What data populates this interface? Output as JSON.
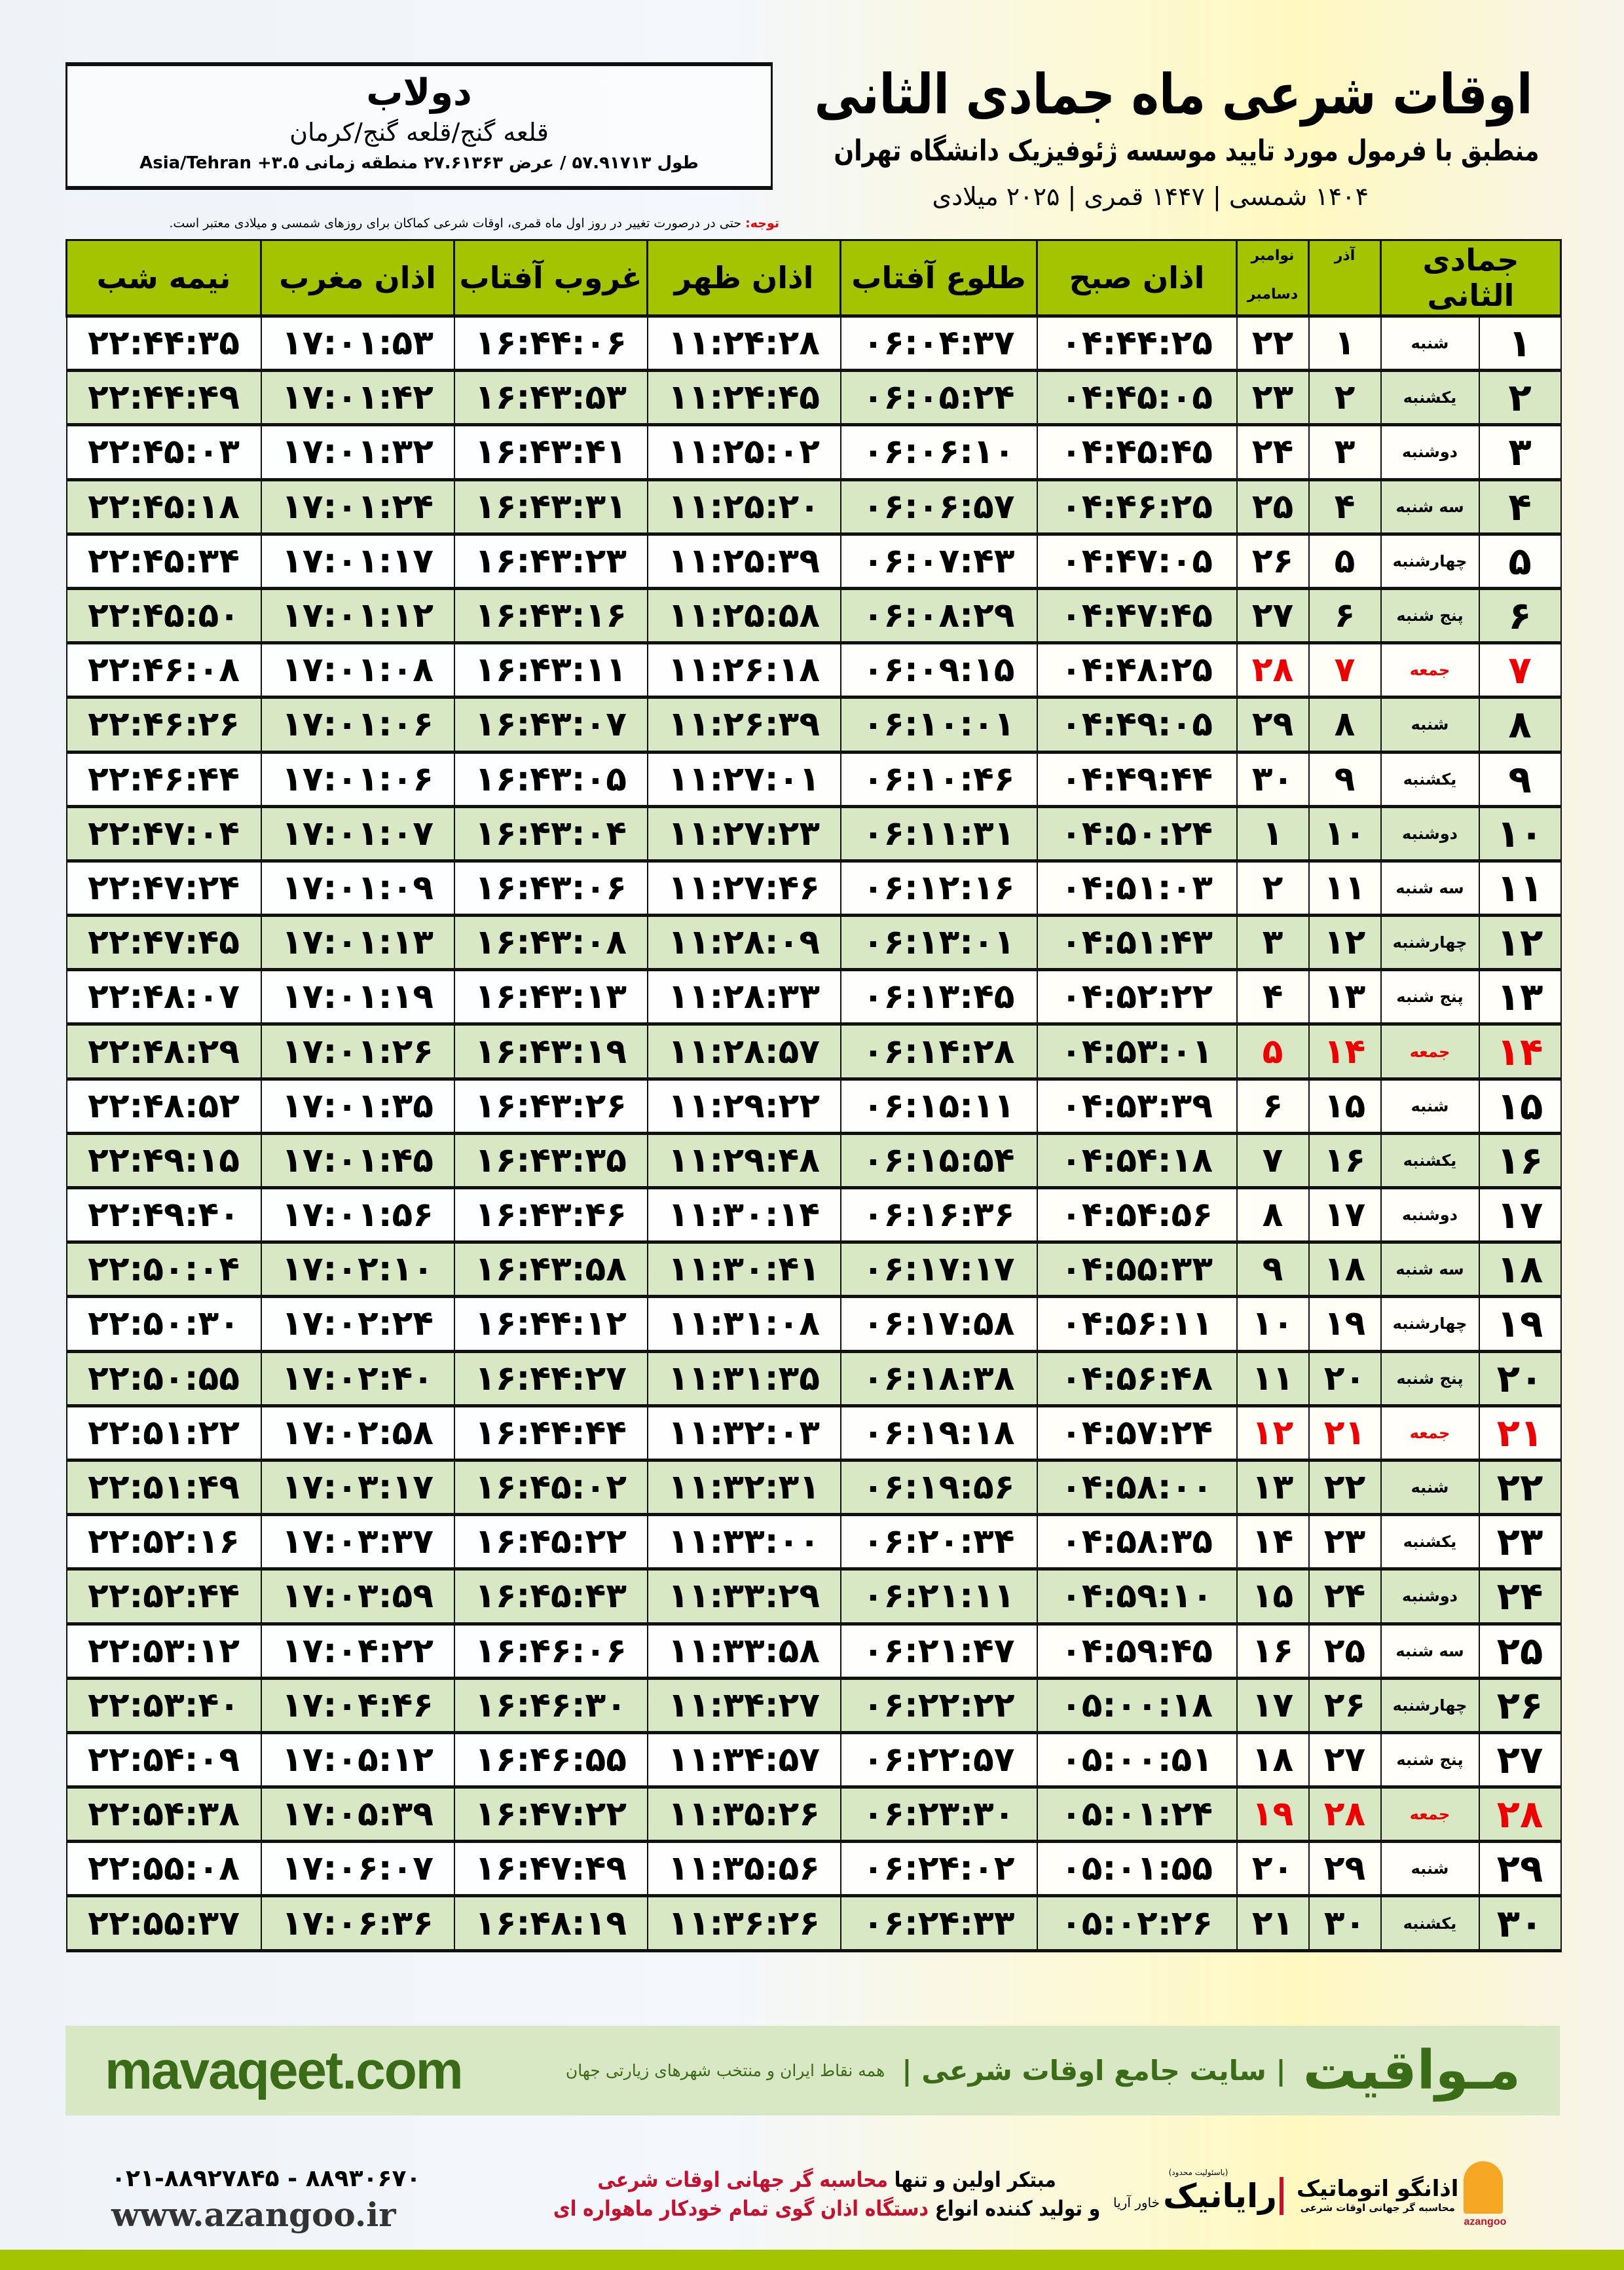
{
  "header": {
    "title": "اوقات شرعی ماه جمادی الثانی",
    "subtitle": "منطبق با فرمول مورد تایید موسسه ژئوفیزیک دانشگاه تهران",
    "dateline": "۱۴۰۴ شمسی | ۱۴۴۷ قمری | ۲۰۲۵ میلادی"
  },
  "location": {
    "city": "دولاب",
    "path": "قلعه گنج/قلعه گنج/کرمان",
    "coords": "طول ۵۷.۹۱۷۱۳ / عرض ۲۷.۶۱۳۶۳ منطقه زمانی ۳.۵+ Asia/Tehran"
  },
  "note": {
    "label": "توجه:",
    "text": " حتی در درصورت تغییر در روز اول ماه قمری، اوقات شرعی کماکان برای روزهای شمسی و میلادی معتبر است."
  },
  "colors": {
    "header_green": "#a4c400",
    "row_green": "#d9e8c4",
    "friday_red": "#e00000",
    "brand_green": "#3a6b17"
  },
  "table": {
    "columns": {
      "hijri": "جمادی الثانی",
      "azar": "آذر",
      "nov": "نوامبر",
      "dec": "دسامبر",
      "sobh": "اذان صبح",
      "tolou": "طلوع آفتاب",
      "zohr": "اذان ظهر",
      "ghoroob": "غروب آفتاب",
      "maghreb": "اذان مغرب",
      "nime": "نیمه شب"
    },
    "rows": [
      [
        "۱",
        "شنبه",
        "۱",
        "۲۲",
        "۰۴:۴۴:۲۵",
        "۰۶:۰۴:۳۷",
        "۱۱:۲۴:۲۸",
        "۱۶:۴۴:۰۶",
        "۱۷:۰۱:۵۳",
        "۲۲:۴۴:۳۵"
      ],
      [
        "۲",
        "یکشنبه",
        "۲",
        "۲۳",
        "۰۴:۴۵:۰۵",
        "۰۶:۰۵:۲۴",
        "۱۱:۲۴:۴۵",
        "۱۶:۴۳:۵۳",
        "۱۷:۰۱:۴۲",
        "۲۲:۴۴:۴۹"
      ],
      [
        "۳",
        "دوشنبه",
        "۳",
        "۲۴",
        "۰۴:۴۵:۴۵",
        "۰۶:۰۶:۱۰",
        "۱۱:۲۵:۰۲",
        "۱۶:۴۳:۴۱",
        "۱۷:۰۱:۳۲",
        "۲۲:۴۵:۰۳"
      ],
      [
        "۴",
        "سه شنبه",
        "۴",
        "۲۵",
        "۰۴:۴۶:۲۵",
        "۰۶:۰۶:۵۷",
        "۱۱:۲۵:۲۰",
        "۱۶:۴۳:۳۱",
        "۱۷:۰۱:۲۴",
        "۲۲:۴۵:۱۸"
      ],
      [
        "۵",
        "چهارشنبه",
        "۵",
        "۲۶",
        "۰۴:۴۷:۰۵",
        "۰۶:۰۷:۴۳",
        "۱۱:۲۵:۳۹",
        "۱۶:۴۳:۲۳",
        "۱۷:۰۱:۱۷",
        "۲۲:۴۵:۳۴"
      ],
      [
        "۶",
        "پنج شنبه",
        "۶",
        "۲۷",
        "۰۴:۴۷:۴۵",
        "۰۶:۰۸:۲۹",
        "۱۱:۲۵:۵۸",
        "۱۶:۴۳:۱۶",
        "۱۷:۰۱:۱۲",
        "۲۲:۴۵:۵۰"
      ],
      [
        "۷",
        "جمعه",
        "۷",
        "۲۸",
        "۰۴:۴۸:۲۵",
        "۰۶:۰۹:۱۵",
        "۱۱:۲۶:۱۸",
        "۱۶:۴۳:۱۱",
        "۱۷:۰۱:۰۸",
        "۲۲:۴۶:۰۸"
      ],
      [
        "۸",
        "شنبه",
        "۸",
        "۲۹",
        "۰۴:۴۹:۰۵",
        "۰۶:۱۰:۰۱",
        "۱۱:۲۶:۳۹",
        "۱۶:۴۳:۰۷",
        "۱۷:۰۱:۰۶",
        "۲۲:۴۶:۲۶"
      ],
      [
        "۹",
        "یکشنبه",
        "۹",
        "۳۰",
        "۰۴:۴۹:۴۴",
        "۰۶:۱۰:۴۶",
        "۱۱:۲۷:۰۱",
        "۱۶:۴۳:۰۵",
        "۱۷:۰۱:۰۶",
        "۲۲:۴۶:۴۴"
      ],
      [
        "۱۰",
        "دوشنبه",
        "۱۰",
        "۱",
        "۰۴:۵۰:۲۴",
        "۰۶:۱۱:۳۱",
        "۱۱:۲۷:۲۳",
        "۱۶:۴۳:۰۴",
        "۱۷:۰۱:۰۷",
        "۲۲:۴۷:۰۴"
      ],
      [
        "۱۱",
        "سه شنبه",
        "۱۱",
        "۲",
        "۰۴:۵۱:۰۳",
        "۰۶:۱۲:۱۶",
        "۱۱:۲۷:۴۶",
        "۱۶:۴۳:۰۶",
        "۱۷:۰۱:۰۹",
        "۲۲:۴۷:۲۴"
      ],
      [
        "۱۲",
        "چهارشنبه",
        "۱۲",
        "۳",
        "۰۴:۵۱:۴۳",
        "۰۶:۱۳:۰۱",
        "۱۱:۲۸:۰۹",
        "۱۶:۴۳:۰۸",
        "۱۷:۰۱:۱۳",
        "۲۲:۴۷:۴۵"
      ],
      [
        "۱۳",
        "پنج شنبه",
        "۱۳",
        "۴",
        "۰۴:۵۲:۲۲",
        "۰۶:۱۳:۴۵",
        "۱۱:۲۸:۳۳",
        "۱۶:۴۳:۱۳",
        "۱۷:۰۱:۱۹",
        "۲۲:۴۸:۰۷"
      ],
      [
        "۱۴",
        "جمعه",
        "۱۴",
        "۵",
        "۰۴:۵۳:۰۱",
        "۰۶:۱۴:۲۸",
        "۱۱:۲۸:۵۷",
        "۱۶:۴۳:۱۹",
        "۱۷:۰۱:۲۶",
        "۲۲:۴۸:۲۹"
      ],
      [
        "۱۵",
        "شنبه",
        "۱۵",
        "۶",
        "۰۴:۵۳:۳۹",
        "۰۶:۱۵:۱۱",
        "۱۱:۲۹:۲۲",
        "۱۶:۴۳:۲۶",
        "۱۷:۰۱:۳۵",
        "۲۲:۴۸:۵۲"
      ],
      [
        "۱۶",
        "یکشنبه",
        "۱۶",
        "۷",
        "۰۴:۵۴:۱۸",
        "۰۶:۱۵:۵۴",
        "۱۱:۲۹:۴۸",
        "۱۶:۴۳:۳۵",
        "۱۷:۰۱:۴۵",
        "۲۲:۴۹:۱۵"
      ],
      [
        "۱۷",
        "دوشنبه",
        "۱۷",
        "۸",
        "۰۴:۵۴:۵۶",
        "۰۶:۱۶:۳۶",
        "۱۱:۳۰:۱۴",
        "۱۶:۴۳:۴۶",
        "۱۷:۰۱:۵۶",
        "۲۲:۴۹:۴۰"
      ],
      [
        "۱۸",
        "سه شنبه",
        "۱۸",
        "۹",
        "۰۴:۵۵:۳۳",
        "۰۶:۱۷:۱۷",
        "۱۱:۳۰:۴۱",
        "۱۶:۴۳:۵۸",
        "۱۷:۰۲:۱۰",
        "۲۲:۵۰:۰۴"
      ],
      [
        "۱۹",
        "چهارشنبه",
        "۱۹",
        "۱۰",
        "۰۴:۵۶:۱۱",
        "۰۶:۱۷:۵۸",
        "۱۱:۳۱:۰۸",
        "۱۶:۴۴:۱۲",
        "۱۷:۰۲:۲۴",
        "۲۲:۵۰:۳۰"
      ],
      [
        "۲۰",
        "پنج شنبه",
        "۲۰",
        "۱۱",
        "۰۴:۵۶:۴۸",
        "۰۶:۱۸:۳۸",
        "۱۱:۳۱:۳۵",
        "۱۶:۴۴:۲۷",
        "۱۷:۰۲:۴۰",
        "۲۲:۵۰:۵۵"
      ],
      [
        "۲۱",
        "جمعه",
        "۲۱",
        "۱۲",
        "۰۴:۵۷:۲۴",
        "۰۶:۱۹:۱۸",
        "۱۱:۳۲:۰۳",
        "۱۶:۴۴:۴۴",
        "۱۷:۰۲:۵۸",
        "۲۲:۵۱:۲۲"
      ],
      [
        "۲۲",
        "شنبه",
        "۲۲",
        "۱۳",
        "۰۴:۵۸:۰۰",
        "۰۶:۱۹:۵۶",
        "۱۱:۳۲:۳۱",
        "۱۶:۴۵:۰۲",
        "۱۷:۰۳:۱۷",
        "۲۲:۵۱:۴۹"
      ],
      [
        "۲۳",
        "یکشنبه",
        "۲۳",
        "۱۴",
        "۰۴:۵۸:۳۵",
        "۰۶:۲۰:۳۴",
        "۱۱:۳۳:۰۰",
        "۱۶:۴۵:۲۲",
        "۱۷:۰۳:۳۷",
        "۲۲:۵۲:۱۶"
      ],
      [
        "۲۴",
        "دوشنبه",
        "۲۴",
        "۱۵",
        "۰۴:۵۹:۱۰",
        "۰۶:۲۱:۱۱",
        "۱۱:۳۳:۲۹",
        "۱۶:۴۵:۴۳",
        "۱۷:۰۳:۵۹",
        "۲۲:۵۲:۴۴"
      ],
      [
        "۲۵",
        "سه شنبه",
        "۲۵",
        "۱۶",
        "۰۴:۵۹:۴۵",
        "۰۶:۲۱:۴۷",
        "۱۱:۳۳:۵۸",
        "۱۶:۴۶:۰۶",
        "۱۷:۰۴:۲۲",
        "۲۲:۵۳:۱۲"
      ],
      [
        "۲۶",
        "چهارشنبه",
        "۲۶",
        "۱۷",
        "۰۵:۰۰:۱۸",
        "۰۶:۲۲:۲۲",
        "۱۱:۳۴:۲۷",
        "۱۶:۴۶:۳۰",
        "۱۷:۰۴:۴۶",
        "۲۲:۵۳:۴۰"
      ],
      [
        "۲۷",
        "پنج شنبه",
        "۲۷",
        "۱۸",
        "۰۵:۰۰:۵۱",
        "۰۶:۲۲:۵۷",
        "۱۱:۳۴:۵۷",
        "۱۶:۴۶:۵۵",
        "۱۷:۰۵:۱۲",
        "۲۲:۵۴:۰۹"
      ],
      [
        "۲۸",
        "جمعه",
        "۲۸",
        "۱۹",
        "۰۵:۰۱:۲۴",
        "۰۶:۲۳:۳۰",
        "۱۱:۳۵:۲۶",
        "۱۶:۴۷:۲۲",
        "۱۷:۰۵:۳۹",
        "۲۲:۵۴:۳۸"
      ],
      [
        "۲۹",
        "شنبه",
        "۲۹",
        "۲۰",
        "۰۵:۰۱:۵۵",
        "۰۶:۲۴:۰۲",
        "۱۱:۳۵:۵۶",
        "۱۶:۴۷:۴۹",
        "۱۷:۰۶:۰۷",
        "۲۲:۵۵:۰۸"
      ],
      [
        "۳۰",
        "یکشنبه",
        "۳۰",
        "۲۱",
        "۰۵:۰۲:۲۶",
        "۰۶:۲۴:۳۳",
        "۱۱:۳۶:۲۶",
        "۱۶:۴۸:۱۹",
        "۱۷:۰۶:۳۶",
        "۲۲:۵۵:۳۷"
      ]
    ]
  },
  "banner": {
    "brand": "مـواقیت",
    "tagline": "| سایت جامع اوقات شرعی |",
    "tagline2": "همه نقاط ایران و منتخب شهرهای زیارتی جهان",
    "site": "mavaqeet.com"
  },
  "footer": {
    "phone": "۰۲۱-۸۸۹۲۷۸۴۵ - ۸۸۹۳۰۶۷۰",
    "www": "www.azangoo.ir",
    "line1a": "مبتکر اولین و تنها ",
    "line1b": "محاسبه گر جهانی اوقات شرعی",
    "line2a": "و تولید کننده انواع ",
    "line2b": "دستگاه اذان گوی تمام خودکار ماهواره ای",
    "rayanik_note": "(باسئولیت محدود)",
    "rayanik": "رایانیک",
    "rayanik_sub": "خاور آریا",
    "azangoo_name": "اذانگو اتوماتیک",
    "azangoo_sub": "محاسبه گر جهانی اوقات شرعی",
    "azangoo_latin": "azangoo"
  }
}
